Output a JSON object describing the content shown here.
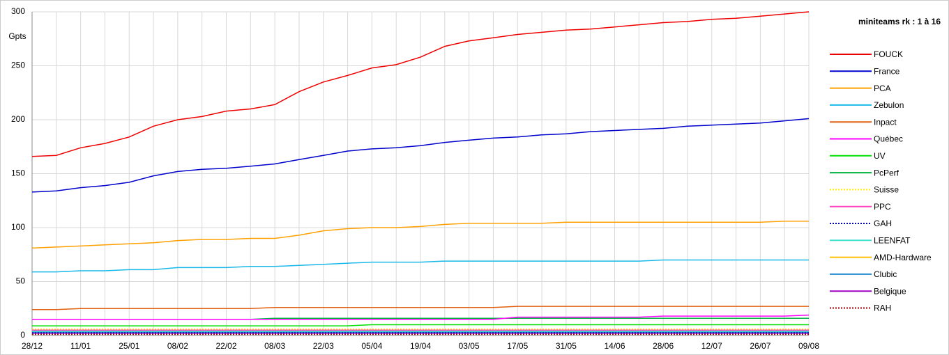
{
  "chart_data": {
    "type": "line",
    "legend_title": "miniteams rk : 1 à 16",
    "y_label": "Gpts",
    "categories": [
      "28/12",
      null,
      "11/01",
      null,
      "25/01",
      null,
      "08/02",
      null,
      "22/02",
      null,
      "08/03",
      null,
      "22/03",
      null,
      "05/04",
      null,
      "19/04",
      null,
      "03/05",
      null,
      "17/05",
      null,
      "31/05",
      null,
      "14/06",
      null,
      "28/06",
      null,
      "12/07",
      null,
      "26/07",
      null,
      "09/08"
    ],
    "ylim": [
      0,
      300
    ],
    "yticks": [
      0,
      50,
      100,
      150,
      200,
      250,
      300
    ],
    "grid": true,
    "legend": "right",
    "series": [
      {
        "name": "FOUCK",
        "color": "#ee0000",
        "values": [
          166,
          167,
          174,
          178,
          184,
          194,
          200,
          203,
          208,
          210,
          214,
          226,
          235,
          241,
          248,
          251,
          258,
          268,
          273,
          276,
          279,
          281,
          283,
          284,
          286,
          288,
          290,
          291,
          293,
          294,
          296,
          298,
          300
        ]
      },
      {
        "name": "France",
        "color": "#0000cc",
        "values": [
          133,
          134,
          137,
          139,
          142,
          148,
          152,
          154,
          155,
          157,
          159,
          163,
          167,
          171,
          173,
          174,
          176,
          179,
          181,
          183,
          184,
          186,
          187,
          189,
          190,
          191,
          192,
          194,
          195,
          196,
          197,
          199,
          201
        ]
      },
      {
        "name": "PCA",
        "color": "#ffa000",
        "values": [
          81,
          82,
          83,
          84,
          85,
          86,
          88,
          89,
          89,
          90,
          90,
          93,
          97,
          99,
          100,
          100,
          101,
          103,
          104,
          104,
          104,
          104,
          105,
          105,
          105,
          105,
          105,
          105,
          105,
          105,
          105,
          106,
          106
        ]
      },
      {
        "name": "Zebulon",
        "color": "#18b8e8",
        "values": [
          59,
          59,
          60,
          60,
          61,
          61,
          63,
          63,
          63,
          64,
          64,
          65,
          66,
          67,
          68,
          68,
          68,
          69,
          69,
          69,
          69,
          69,
          69,
          69,
          69,
          69,
          70,
          70,
          70,
          70,
          70,
          70,
          70
        ]
      },
      {
        "name": "Inpact",
        "color": "#e06010",
        "values": [
          24,
          24,
          25,
          25,
          25,
          25,
          25,
          25,
          25,
          25,
          26,
          26,
          26,
          26,
          26,
          26,
          26,
          26,
          26,
          26,
          27,
          27,
          27,
          27,
          27,
          27,
          27,
          27,
          27,
          27,
          27,
          27,
          27
        ]
      },
      {
        "name": "Québec",
        "color": "#ff00ff",
        "values": [
          15,
          15,
          15,
          15,
          15,
          15,
          15,
          15,
          15,
          15,
          15,
          15,
          15,
          15,
          15,
          15,
          15,
          15,
          15,
          15,
          17,
          17,
          17,
          17,
          17,
          17,
          18,
          18,
          18,
          18,
          18,
          18,
          19
        ]
      },
      {
        "name": "UV",
        "color": "#00e000",
        "values": [
          9,
          9,
          9,
          9,
          9,
          9,
          9,
          9,
          9,
          9,
          9,
          9,
          9,
          9,
          10,
          10,
          10,
          10,
          10,
          10,
          10,
          10,
          10,
          10,
          10,
          10,
          10,
          10,
          10,
          10,
          10,
          10,
          10
        ]
      },
      {
        "name": "PcPerf",
        "color": "#00b040",
        "values": [
          15,
          15,
          15,
          15,
          15,
          15,
          15,
          15,
          15,
          15,
          16,
          16,
          16,
          16,
          16,
          16,
          16,
          16,
          16,
          16,
          16,
          16,
          16,
          16,
          16,
          16,
          16,
          16,
          16,
          16,
          16,
          16,
          16
        ]
      },
      {
        "name": "Suisse",
        "color": "#ffee00",
        "dash": "dotted",
        "values": [
          6,
          6,
          6,
          6,
          6,
          6,
          6,
          6,
          6,
          6,
          6,
          6,
          6,
          6,
          6,
          6,
          6,
          6,
          6,
          6,
          6,
          6,
          6,
          6,
          6,
          6,
          6,
          6,
          6,
          6,
          6,
          6,
          6
        ]
      },
      {
        "name": "PPC",
        "color": "#ff40c0",
        "values": [
          5,
          5,
          5,
          5,
          5,
          5,
          5,
          5,
          5,
          5,
          5,
          5,
          5,
          5,
          5,
          5,
          5,
          5,
          5,
          5,
          5,
          5,
          5,
          5,
          5,
          5,
          5,
          5,
          5,
          5,
          5,
          5,
          5
        ]
      },
      {
        "name": "GAH",
        "color": "#0000aa",
        "dash": "dotted",
        "values": [
          2.5,
          2.5,
          2.5,
          2.5,
          2.5,
          2.5,
          2.5,
          2.5,
          2.5,
          2.5,
          2.5,
          2.5,
          2.5,
          2.5,
          2.5,
          2.5,
          2.5,
          2.5,
          2.5,
          2.5,
          2.5,
          2.5,
          2.5,
          2.5,
          2.5,
          2.5,
          2.5,
          2.5,
          2.5,
          2.5,
          2.5,
          2.5,
          2.5
        ]
      },
      {
        "name": "LEENFAT",
        "color": "#40e0d0",
        "values": [
          4,
          4,
          4,
          4,
          4,
          4,
          4,
          4,
          4,
          4,
          4,
          4,
          4,
          4,
          4,
          4,
          4,
          4,
          4,
          4,
          4,
          4,
          4,
          4,
          4,
          4,
          4,
          4,
          4,
          4,
          4,
          4,
          4
        ]
      },
      {
        "name": "AMD-Hardware",
        "color": "#ffc000",
        "values": [
          4.5,
          4.5,
          4.5,
          4.5,
          4.5,
          4.5,
          4.5,
          4.5,
          4.5,
          4.5,
          4.5,
          4.5,
          4.5,
          4.5,
          4.5,
          4.5,
          4.5,
          4.5,
          4.5,
          4.5,
          4.5,
          4.5,
          4.5,
          4.5,
          4.5,
          4.5,
          4.5,
          4.5,
          4.5,
          4.5,
          4.5,
          4.5,
          4.5
        ]
      },
      {
        "name": "Clubic",
        "color": "#1e88d0",
        "values": [
          3,
          3,
          3,
          3,
          3,
          3,
          3,
          3,
          3,
          3,
          3,
          3,
          3,
          3,
          3,
          3,
          3,
          3,
          3,
          3,
          3,
          3,
          3,
          3,
          3,
          3,
          3,
          3,
          3,
          3,
          3,
          3,
          3
        ]
      },
      {
        "name": "Belgique",
        "color": "#a000c0",
        "values": [
          2,
          2,
          2,
          2,
          2,
          2,
          2,
          2,
          2,
          2,
          2,
          2,
          2,
          2,
          2,
          2,
          2,
          2,
          2,
          2,
          2,
          2,
          2,
          2,
          2,
          2,
          2,
          2,
          2,
          2,
          2,
          2,
          2
        ]
      },
      {
        "name": "RAH",
        "color": "#a00000",
        "dash": "dotted",
        "values": [
          1,
          1,
          1,
          1,
          1,
          1,
          1,
          1,
          1,
          1,
          1,
          1,
          1,
          1,
          1,
          1,
          1,
          1,
          1,
          1,
          1,
          1,
          1,
          1,
          1,
          1,
          1,
          1,
          1,
          1,
          1,
          1,
          1
        ]
      }
    ]
  }
}
